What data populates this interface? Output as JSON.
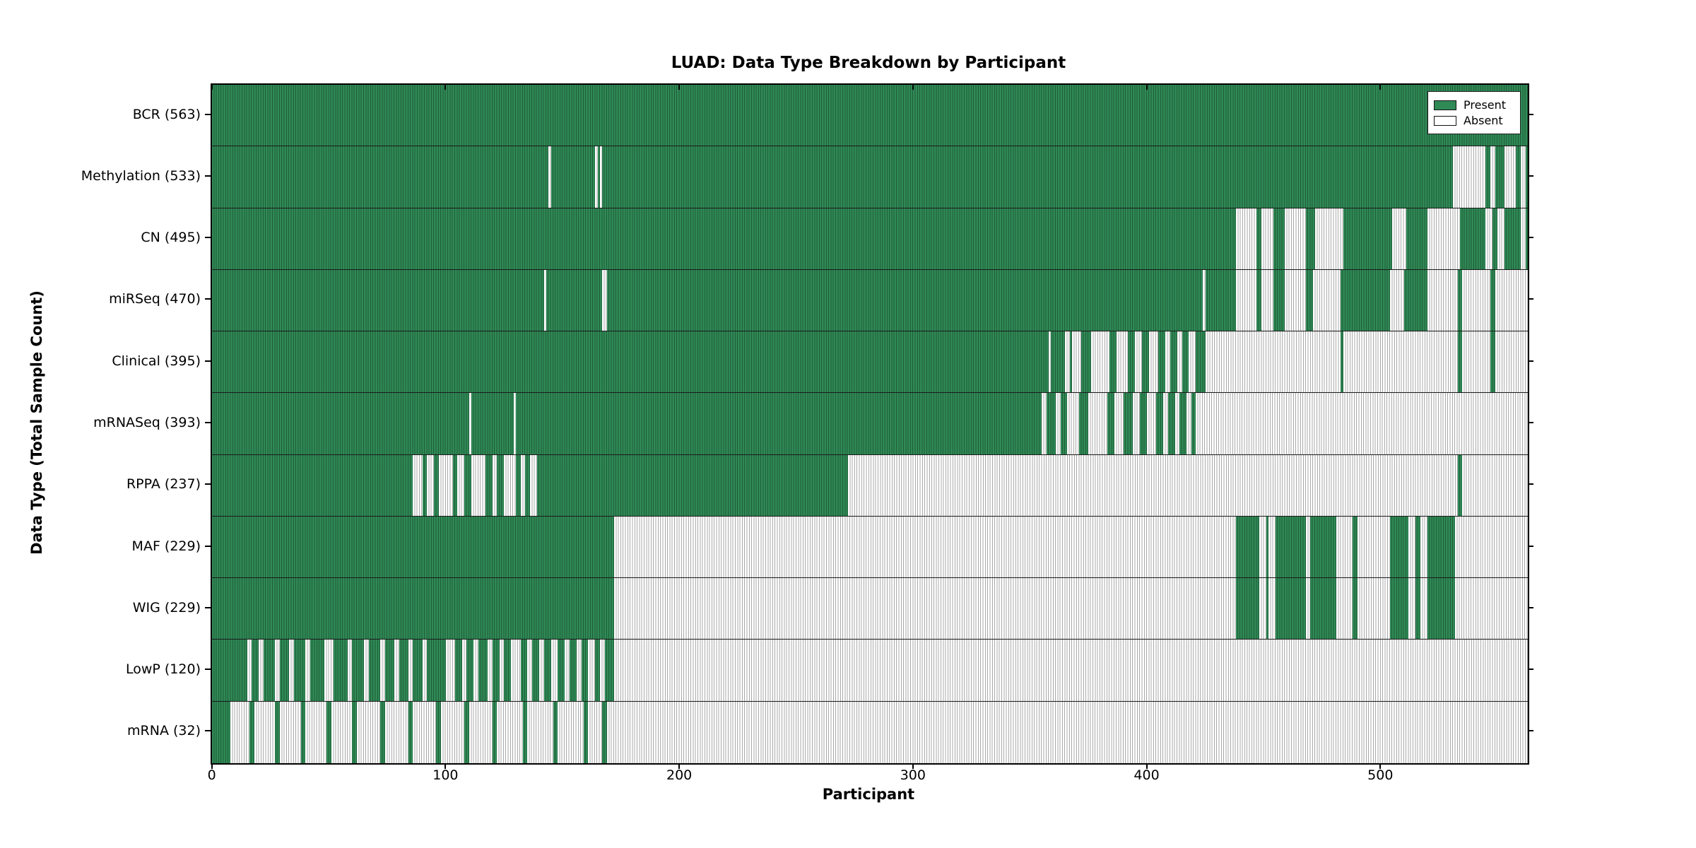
{
  "chart_data": {
    "type": "heatmap",
    "title": "LUAD: Data Type Breakdown by Participant",
    "xlabel": "Participant",
    "ylabel": "Data Type (Total Sample Count)",
    "x_ticks": [
      0,
      100,
      200,
      300,
      400,
      500
    ],
    "n_participants": 563,
    "xlim": [
      0,
      563
    ],
    "grid": false,
    "legend_position": "upper right",
    "legend": [
      {
        "label": "Present",
        "color": "#308a56"
      },
      {
        "label": "Absent",
        "color": "#ffffff"
      }
    ],
    "colors": {
      "present_fill": "#308a56",
      "present_edge": "#1e5c38",
      "absent_fill": "#ffffff",
      "absent_edge": "#a8a8a8",
      "row_divider": "#1a1a1a",
      "frame": "#000000"
    },
    "rows": [
      {
        "label": "BCR",
        "count": 563,
        "tick_label": "BCR (563)",
        "absent_ranges": []
      },
      {
        "label": "Methylation",
        "count": 533,
        "tick_label": "Methylation (533)",
        "absent_ranges": [
          [
            144,
            145
          ],
          [
            164,
            165
          ],
          [
            166,
            167
          ],
          [
            531,
            545
          ],
          [
            547,
            549
          ],
          [
            553,
            558
          ],
          [
            560,
            562
          ]
        ]
      },
      {
        "label": "CN",
        "count": 495,
        "tick_label": "CN (495)",
        "absent_ranges": [
          [
            438,
            447
          ],
          [
            449,
            454
          ],
          [
            459,
            468
          ],
          [
            472,
            484
          ],
          [
            505,
            511
          ],
          [
            520,
            534
          ],
          [
            545,
            548
          ],
          [
            550,
            553
          ],
          [
            560,
            562
          ]
        ]
      },
      {
        "label": "miRSeq",
        "count": 470,
        "tick_label": "miRSeq (470)",
        "absent_ranges": [
          [
            142,
            143
          ],
          [
            167,
            169
          ],
          [
            424,
            425
          ],
          [
            438,
            447
          ],
          [
            449,
            454
          ],
          [
            459,
            468
          ],
          [
            471,
            483
          ],
          [
            504,
            510
          ],
          [
            520,
            533
          ],
          [
            535,
            547
          ],
          [
            549,
            563
          ]
        ]
      },
      {
        "label": "Clinical",
        "count": 395,
        "tick_label": "Clinical (395)",
        "absent_ranges": [
          [
            358,
            359
          ],
          [
            365,
            367
          ],
          [
            368,
            372
          ],
          [
            376,
            384
          ],
          [
            387,
            392
          ],
          [
            395,
            398
          ],
          [
            401,
            405
          ],
          [
            408,
            410
          ],
          [
            413,
            415
          ],
          [
            418,
            421
          ],
          [
            425,
            483
          ],
          [
            484,
            533
          ],
          [
            535,
            547
          ],
          [
            549,
            563
          ]
        ]
      },
      {
        "label": "mRNASeq",
        "count": 393,
        "tick_label": "mRNASeq (393)",
        "absent_ranges": [
          [
            110,
            111
          ],
          [
            129,
            130
          ],
          [
            355,
            357
          ],
          [
            361,
            363
          ],
          [
            366,
            371
          ],
          [
            375,
            383
          ],
          [
            386,
            390
          ],
          [
            394,
            397
          ],
          [
            400,
            404
          ],
          [
            407,
            409
          ],
          [
            412,
            414
          ],
          [
            417,
            419
          ],
          [
            421,
            563
          ]
        ]
      },
      {
        "label": "RPPA",
        "count": 237,
        "tick_label": "RPPA (237)",
        "absent_ranges": [
          [
            86,
            90
          ],
          [
            92,
            95
          ],
          [
            97,
            103
          ],
          [
            105,
            108
          ],
          [
            111,
            117
          ],
          [
            120,
            122
          ],
          [
            125,
            130
          ],
          [
            132,
            134
          ],
          [
            136,
            139
          ],
          [
            272,
            533
          ],
          [
            535,
            563
          ]
        ]
      },
      {
        "label": "MAF",
        "count": 229,
        "tick_label": "MAF (229)",
        "absent_ranges": [
          [
            172,
            438
          ],
          [
            448,
            451
          ],
          [
            452,
            455
          ],
          [
            468,
            470
          ],
          [
            481,
            488
          ],
          [
            490,
            504
          ],
          [
            512,
            515
          ],
          [
            517,
            520
          ],
          [
            532,
            563
          ]
        ]
      },
      {
        "label": "WIG",
        "count": 229,
        "tick_label": "WIG (229)",
        "absent_ranges": [
          [
            172,
            438
          ],
          [
            448,
            451
          ],
          [
            452,
            455
          ],
          [
            468,
            470
          ],
          [
            481,
            488
          ],
          [
            490,
            504
          ],
          [
            512,
            515
          ],
          [
            517,
            520
          ],
          [
            532,
            563
          ]
        ]
      },
      {
        "label": "LowP",
        "count": 120,
        "tick_label": "LowP (120)",
        "absent_ranges": [
          [
            15,
            17
          ],
          [
            20,
            22
          ],
          [
            27,
            29
          ],
          [
            33,
            35
          ],
          [
            40,
            42
          ],
          [
            48,
            52
          ],
          [
            58,
            60
          ],
          [
            65,
            67
          ],
          [
            72,
            74
          ],
          [
            78,
            80
          ],
          [
            84,
            86
          ],
          [
            90,
            92
          ],
          [
            100,
            104
          ],
          [
            107,
            109
          ],
          [
            112,
            114
          ],
          [
            118,
            120
          ],
          [
            123,
            125
          ],
          [
            128,
            132
          ],
          [
            135,
            137
          ],
          [
            140,
            142
          ],
          [
            145,
            148
          ],
          [
            151,
            153
          ],
          [
            156,
            158
          ],
          [
            161,
            164
          ],
          [
            166,
            168
          ],
          [
            172,
            563
          ]
        ]
      },
      {
        "label": "mRNA",
        "count": 32,
        "tick_label": "mRNA (32)",
        "absent_ranges": [
          [
            8,
            16
          ],
          [
            18,
            27
          ],
          [
            29,
            38
          ],
          [
            40,
            49
          ],
          [
            51,
            60
          ],
          [
            62,
            72
          ],
          [
            74,
            84
          ],
          [
            86,
            96
          ],
          [
            98,
            108
          ],
          [
            110,
            120
          ],
          [
            122,
            133
          ],
          [
            135,
            146
          ],
          [
            148,
            159
          ],
          [
            161,
            167
          ],
          [
            169,
            563
          ]
        ]
      }
    ]
  }
}
